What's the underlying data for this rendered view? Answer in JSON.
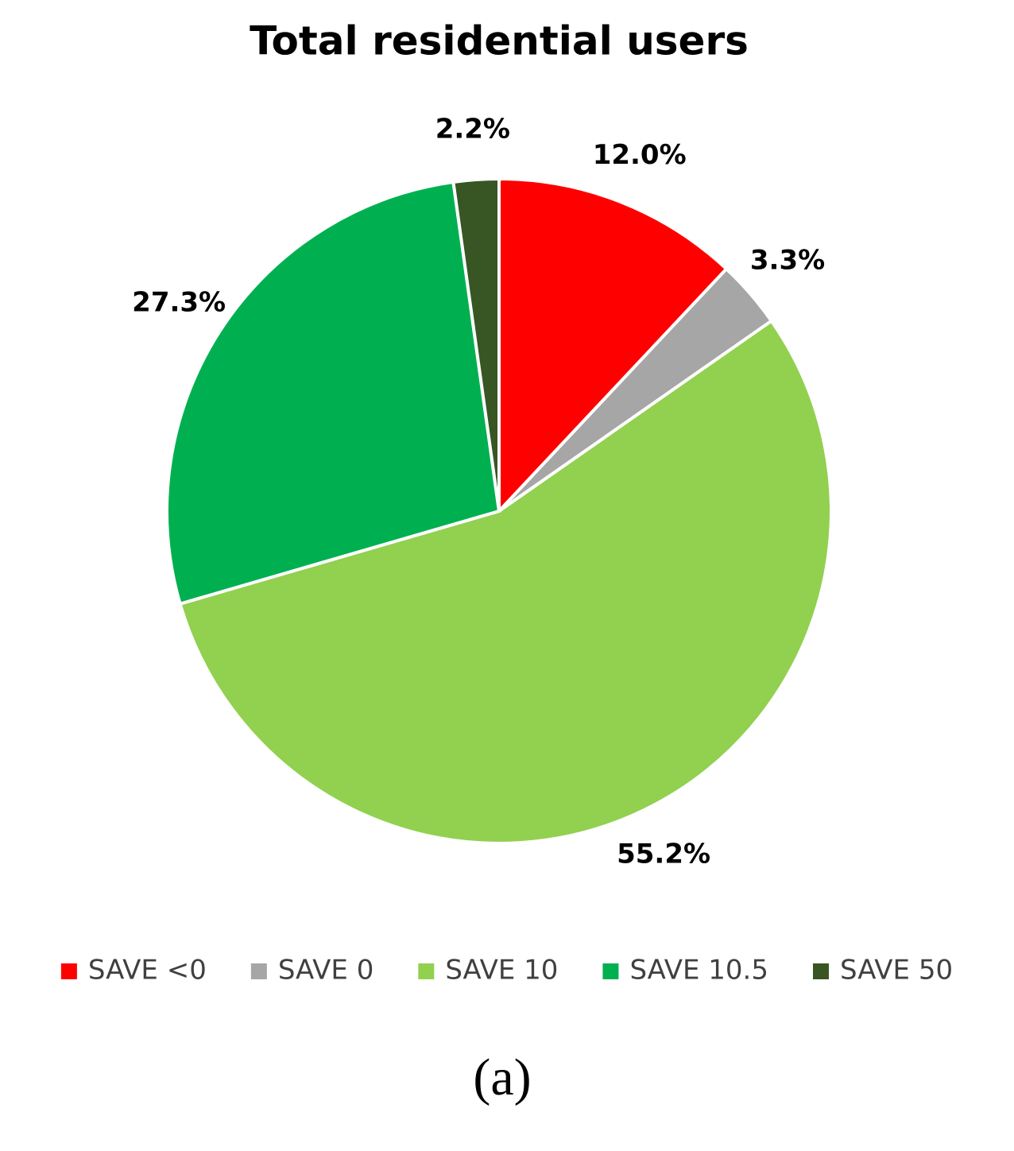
{
  "chart_data": {
    "type": "pie",
    "title": "Total residential users",
    "categories": [
      "SAVE <0",
      "SAVE 0",
      "SAVE 10",
      "SAVE 10.5",
      "SAVE 50"
    ],
    "values": [
      12.0,
      3.3,
      55.2,
      27.3,
      2.2
    ],
    "value_labels": [
      "12.0%",
      "3.3%",
      "55.2%",
      "27.3%",
      "2.2%"
    ],
    "colors": [
      "#ff0000",
      "#a6a6a6",
      "#92d050",
      "#00b050",
      "#375623"
    ],
    "legend": "bottom"
  },
  "caption": "(a)"
}
